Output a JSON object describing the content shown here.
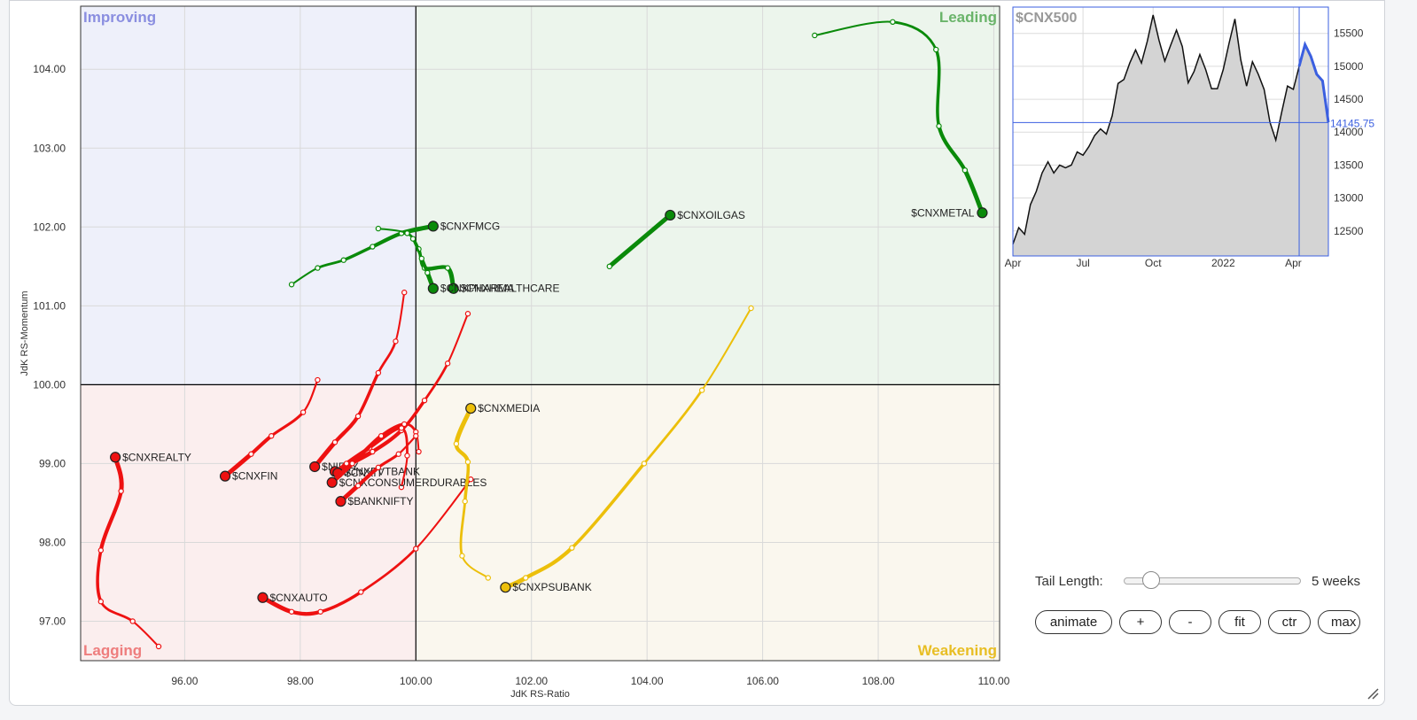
{
  "rrg": {
    "xlabel": "JdK RS-Ratio",
    "ylabel": "JdK RS-Momentum",
    "quadrants": {
      "improving": {
        "label": "Improving",
        "color": "#8a8ee0",
        "bg": "#eef0fa"
      },
      "leading": {
        "label": "Leading",
        "color": "#6ab46a",
        "bg": "#ecf5ec"
      },
      "lagging": {
        "label": "Lagging",
        "color": "#ee7d7d",
        "bg": "#fbeeee"
      },
      "weakening": {
        "label": "Weakening",
        "color": "#e8be24",
        "bg": "#faf7ee"
      }
    },
    "colors": {
      "leading": "#0a8a0a",
      "lagging": "#ee1111",
      "weakening": "#ecbf0a"
    }
  },
  "chart_data": [
    {
      "type": "scatter",
      "xlabel": "JdK RS-Ratio",
      "ylabel": "JdK RS-Momentum",
      "xlim": [
        94.2,
        110.1
      ],
      "ylim": [
        96.5,
        104.8
      ],
      "xticks": [
        "96.00",
        "98.00",
        "100.00",
        "102.00",
        "104.00",
        "106.00",
        "108.00",
        "110.00"
      ],
      "yticks": [
        "97.00",
        "98.00",
        "99.00",
        "100.00",
        "101.00",
        "102.00",
        "103.00",
        "104.00"
      ],
      "series": [
        {
          "name": "$CNXMETAL",
          "quadrant": "leading",
          "points": [
            [
              106.9,
              104.43
            ],
            [
              108.25,
              104.6
            ],
            [
              109.0,
              104.25
            ],
            [
              109.05,
              103.28
            ],
            [
              109.5,
              102.72
            ],
            [
              109.8,
              102.18
            ]
          ]
        },
        {
          "name": "$CNXOILGAS",
          "quadrant": "leading",
          "points": [
            [
              103.35,
              101.5
            ],
            [
              104.4,
              102.15
            ]
          ]
        },
        {
          "name": "$CNXFMCG",
          "quadrant": "leading",
          "points": [
            [
              97.85,
              101.27
            ],
            [
              98.3,
              101.48
            ],
            [
              98.75,
              101.58
            ],
            [
              99.25,
              101.75
            ],
            [
              99.75,
              101.92
            ],
            [
              100.3,
              102.01
            ]
          ]
        },
        {
          "name": "$CNXHEALTHCARE",
          "quadrant": "leading",
          "points": [
            [
              99.35,
              101.98
            ],
            [
              99.85,
              101.92
            ],
            [
              100.05,
              101.72
            ],
            [
              100.15,
              101.48
            ],
            [
              100.55,
              101.48
            ],
            [
              100.65,
              101.22
            ]
          ]
        },
        {
          "name": "$CNXPHARMA",
          "quadrant": "leading",
          "points": [
            [
              99.95,
              101.85
            ],
            [
              100.1,
              101.6
            ],
            [
              100.2,
              101.42
            ],
            [
              100.3,
              101.22
            ]
          ]
        },
        {
          "name": "$CNXREALTY",
          "quadrant": "lagging",
          "points": [
            [
              95.55,
              96.68
            ],
            [
              95.1,
              97.0
            ],
            [
              94.55,
              97.25
            ],
            [
              94.55,
              97.9
            ],
            [
              94.9,
              98.65
            ],
            [
              94.8,
              99.08
            ]
          ]
        },
        {
          "name": "$CNXFIN",
          "quadrant": "lagging",
          "points": [
            [
              98.3,
              100.06
            ],
            [
              98.05,
              99.65
            ],
            [
              97.5,
              99.35
            ],
            [
              97.15,
              99.12
            ],
            [
              96.7,
              98.84
            ]
          ]
        },
        {
          "name": "$NIFTY",
          "quadrant": "lagging",
          "points": [
            [
              99.8,
              101.17
            ],
            [
              99.65,
              100.55
            ],
            [
              99.35,
              100.15
            ],
            [
              99.0,
              99.6
            ],
            [
              98.6,
              99.27
            ],
            [
              98.25,
              98.96
            ]
          ]
        },
        {
          "name": "$CNXPVTBANK",
          "quadrant": "lagging",
          "points": [
            [
              100.9,
              100.9
            ],
            [
              100.55,
              100.27
            ],
            [
              100.15,
              99.8
            ],
            [
              99.75,
              99.42
            ],
            [
              99.25,
              99.15
            ],
            [
              98.6,
              98.9
            ]
          ]
        },
        {
          "name": "$CNXIT",
          "quadrant": "lagging",
          "points": [
            [
              99.75,
              98.7
            ],
            [
              99.85,
              99.1
            ],
            [
              99.75,
              99.45
            ],
            [
              99.2,
              99.2
            ],
            [
              98.8,
              99.0
            ],
            [
              98.65,
              98.88
            ]
          ]
        },
        {
          "name": "$CNXCONSUMERDURABLES",
          "quadrant": "lagging",
          "points": [
            [
              100.05,
              99.15
            ],
            [
              100.0,
              99.4
            ],
            [
              99.8,
              99.5
            ],
            [
              99.4,
              99.35
            ],
            [
              98.9,
              99.0
            ],
            [
              98.55,
              98.76
            ]
          ]
        },
        {
          "name": "$BANKNIFTY",
          "quadrant": "lagging",
          "points": [
            [
              100.0,
              99.35
            ],
            [
              99.7,
              99.12
            ],
            [
              99.35,
              98.95
            ],
            [
              99.0,
              98.72
            ],
            [
              98.7,
              98.52
            ]
          ]
        },
        {
          "name": "$CNXAUTO",
          "quadrant": "lagging",
          "points": [
            [
              100.95,
              98.8
            ],
            [
              100.0,
              97.92
            ],
            [
              99.05,
              97.37
            ],
            [
              98.35,
              97.12
            ],
            [
              97.85,
              97.12
            ],
            [
              97.35,
              97.3
            ]
          ]
        },
        {
          "name": "$CNXMEDIA",
          "quadrant": "weakening",
          "points": [
            [
              101.25,
              97.55
            ],
            [
              100.8,
              97.83
            ],
            [
              100.85,
              98.52
            ],
            [
              100.9,
              99.02
            ],
            [
              100.7,
              99.25
            ],
            [
              100.95,
              99.7
            ]
          ]
        },
        {
          "name": "$CNXPSUBANK",
          "quadrant": "weakening",
          "points": [
            [
              105.8,
              100.97
            ],
            [
              104.95,
              99.93
            ],
            [
              103.95,
              99.0
            ],
            [
              102.7,
              97.93
            ],
            [
              101.9,
              97.55
            ],
            [
              101.55,
              97.43
            ]
          ]
        }
      ]
    },
    {
      "type": "line",
      "title": "$CNX500",
      "current_value": "14145.75",
      "x_tick_labels": [
        "Apr",
        "Jul",
        "Oct",
        "2022",
        "Apr"
      ],
      "yticks": [
        "12500",
        "13000",
        "13500",
        "14000",
        "14500",
        "15000",
        "15500"
      ],
      "ylim": [
        12120,
        15900
      ],
      "values": [
        12300,
        12550,
        12450,
        12900,
        13100,
        13380,
        13550,
        13380,
        13500,
        13460,
        13500,
        13700,
        13650,
        13780,
        13950,
        14050,
        13970,
        14250,
        14740,
        14800,
        15050,
        15250,
        15050,
        15380,
        15780,
        15400,
        15080,
        15320,
        15550,
        15300,
        14750,
        14920,
        15180,
        14950,
        14660,
        14660,
        14950,
        15350,
        15720,
        15100,
        14700,
        15070,
        14880,
        14650,
        14150,
        13880,
        14300,
        14700,
        14650,
        15000,
        15330,
        15150,
        14880,
        14780,
        14150
      ],
      "highlight_from_index": 49
    }
  ],
  "controls": {
    "tail_label": "Tail Length:",
    "tail_value": "5 weeks",
    "buttons": {
      "animate": "animate",
      "plus": "+",
      "minus": "-",
      "fit": "fit",
      "ctr": "ctr",
      "max": "max"
    }
  }
}
